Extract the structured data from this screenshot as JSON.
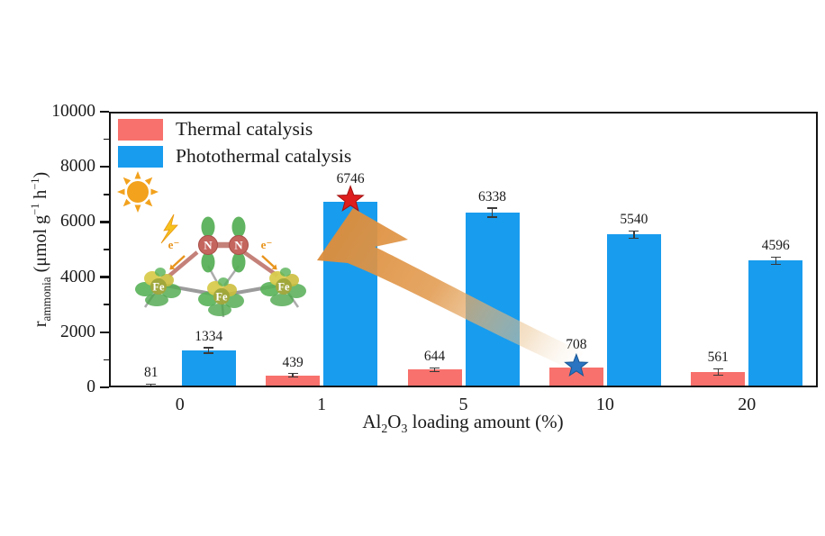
{
  "colors": {
    "thermal": "#F8716C",
    "photothermal": "#189CEE",
    "arrow": "#E29B50",
    "star_photothermal_best": "#DE1E1E",
    "star_thermal_best": "#2B74C2",
    "sun": "#F2A21D",
    "axis": "#141414"
  },
  "legend": {
    "items": [
      {
        "label": "Thermal catalysis",
        "color": "#F8716C"
      },
      {
        "label": "Photothermal catalysis",
        "color": "#189CEE"
      }
    ]
  },
  "axes": {
    "y_label": {
      "base": "r",
      "subscript": "ammonia",
      "unit_open": " (μmol g",
      "sup1": "−1",
      "unit_mid": " h",
      "sup2": "−1",
      "unit_close": ")"
    },
    "x_label": {
      "pre": "Al",
      "sub1": "2",
      "mid": "O",
      "sub2": "3",
      "post": " loading amount (%)"
    },
    "y_ticks": [
      "0",
      "2000",
      "4000",
      "6000",
      "8000",
      "10000"
    ],
    "x_ticks": [
      "0",
      "1",
      "5",
      "10",
      "20"
    ]
  },
  "chart_data": {
    "type": "bar",
    "title": "",
    "categories": [
      "0",
      "1",
      "5",
      "10",
      "20"
    ],
    "xlabel": "Al2O3 loading amount (%)",
    "ylabel": "r_ammonia (μmol g−1 h−1)",
    "ylim": [
      0,
      10000
    ],
    "yticks": [
      0,
      2000,
      4000,
      6000,
      8000,
      10000
    ],
    "minor_tick_step": 1000,
    "grid": false,
    "legend_position": "top-left",
    "series": [
      {
        "name": "Thermal catalysis",
        "color": "#F8716C",
        "values": [
          81,
          439,
          644,
          708,
          561
        ],
        "errors": [
          30,
          65,
          65,
          60,
          115
        ]
      },
      {
        "name": "Photothermal catalysis",
        "color": "#189CEE",
        "values": [
          1334,
          6746,
          6338,
          5540,
          4596
        ],
        "errors": [
          100,
          100,
          160,
          130,
          130
        ]
      }
    ],
    "annotations": [
      {
        "kind": "star",
        "series_index": 1,
        "category_index": 1,
        "color": "#DE1E1E",
        "edge": "#A31010",
        "size": 15
      },
      {
        "kind": "star",
        "series_index": 0,
        "category_index": 3,
        "color": "#2B74C2",
        "edge": "#1A5693",
        "size": 13
      },
      {
        "kind": "arrow",
        "color": "#E29B50",
        "from": "thermal 708 (10%)",
        "to": "photothermal 6746 (1%)"
      }
    ]
  },
  "inset": {
    "icons": [
      "sun-icon",
      "lightning-bolt-icon"
    ],
    "n_label": "N",
    "fe_label": "Fe",
    "electron_label": "e⁻"
  }
}
